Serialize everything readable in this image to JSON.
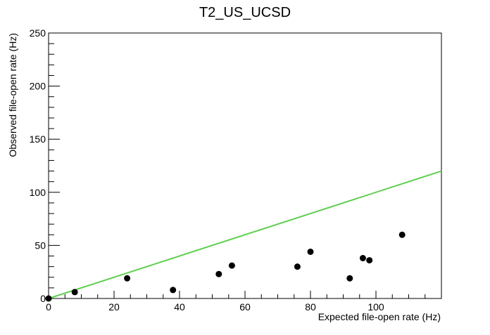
{
  "chart_data": {
    "type": "scatter",
    "title": "T2_US_UCSD",
    "xlabel": "Expected file-open rate (Hz)",
    "ylabel": "Observed file-open rate (Hz)",
    "xlim": [
      0,
      120
    ],
    "ylim": [
      0,
      250
    ],
    "x_ticks": [
      0,
      20,
      40,
      60,
      80,
      100
    ],
    "y_ticks": [
      0,
      50,
      100,
      150,
      200,
      250
    ],
    "grid": false,
    "points": [
      {
        "x": 0,
        "y": 0
      },
      {
        "x": 8,
        "y": 6
      },
      {
        "x": 24,
        "y": 19
      },
      {
        "x": 38,
        "y": 8
      },
      {
        "x": 52,
        "y": 23
      },
      {
        "x": 56,
        "y": 31
      },
      {
        "x": 76,
        "y": 30
      },
      {
        "x": 80,
        "y": 44
      },
      {
        "x": 92,
        "y": 19
      },
      {
        "x": 96,
        "y": 38
      },
      {
        "x": 98,
        "y": 36
      },
      {
        "x": 108,
        "y": 60
      }
    ],
    "reference_line": {
      "x": [
        0,
        120
      ],
      "y": [
        0,
        120
      ],
      "color": "#5fcf4f"
    },
    "marker_color": "#000000"
  }
}
